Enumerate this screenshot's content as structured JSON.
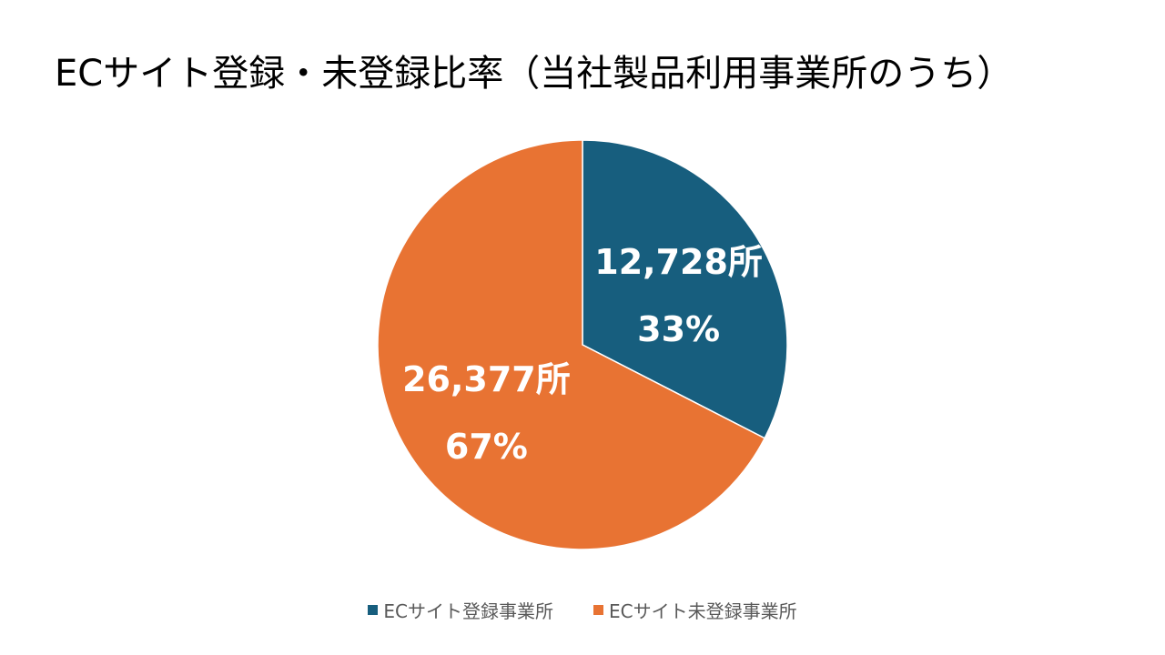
{
  "title": "ECサイト登録・未登録比率（当社製品利用事業所のうち）",
  "chart_data": {
    "type": "pie",
    "title": "ECサイト登録・未登録比率（当社製品利用事業所のうち）",
    "slices": [
      {
        "name": "ECサイト登録事業所",
        "value": 12728,
        "value_label": "12,728所",
        "percent": 33,
        "percent_label": "33%",
        "color": "#175E7E"
      },
      {
        "name": "ECサイト未登録事業所",
        "value": 26377,
        "value_label": "26,377所",
        "percent": 67,
        "percent_label": "67%",
        "color": "#E87333"
      }
    ],
    "legend": "bottom",
    "start_angle": "12 o'clock, clockwise"
  }
}
